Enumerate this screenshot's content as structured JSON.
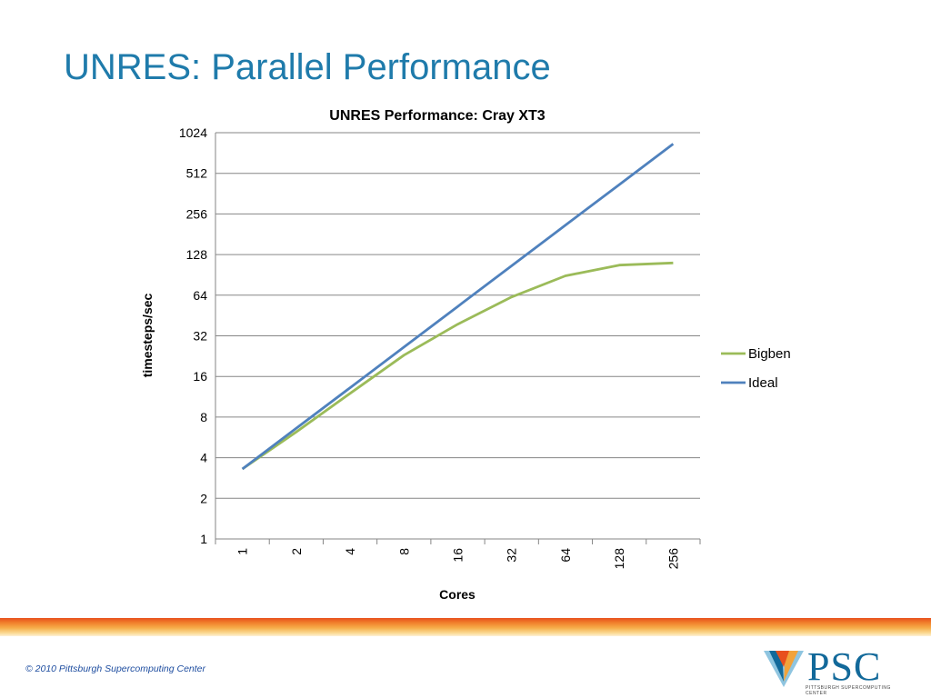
{
  "slide": {
    "title": "UNRES: Parallel Performance",
    "copyright": "© 2010 Pittsburgh Supercomputing Center"
  },
  "logo": {
    "text": "PSC",
    "subtitle": "PITTSBURGH SUPERCOMPUTING CENTER"
  },
  "colors": {
    "title": "#1f7bab",
    "bigben": "#9bbb59",
    "ideal": "#4f81bd",
    "grid": "#868686"
  },
  "chart_data": {
    "type": "line",
    "title": "UNRES Performance: Cray XT3",
    "xlabel": "Cores",
    "ylabel": "timesteps/sec",
    "categories": [
      "1",
      "2",
      "4",
      "8",
      "16",
      "32",
      "64",
      "128",
      "256"
    ],
    "x": [
      1,
      2,
      4,
      8,
      16,
      32,
      64,
      128,
      256
    ],
    "y_scale": "log2",
    "ylim": [
      1,
      1024
    ],
    "y_ticks": [
      "1",
      "2",
      "4",
      "8",
      "16",
      "32",
      "64",
      "128",
      "256",
      "512",
      "1024"
    ],
    "grid": "horizontal",
    "legend_position": "right",
    "series": [
      {
        "name": "Bigben",
        "color": "#9bbb59",
        "values": [
          3.3,
          6.2,
          12,
          23,
          39,
          62,
          89,
          107,
          111
        ]
      },
      {
        "name": "Ideal",
        "color": "#4f81bd",
        "values": [
          3.3,
          6.6,
          13.2,
          26.4,
          52.8,
          105.6,
          211.2,
          422.4,
          844.8
        ]
      }
    ]
  }
}
